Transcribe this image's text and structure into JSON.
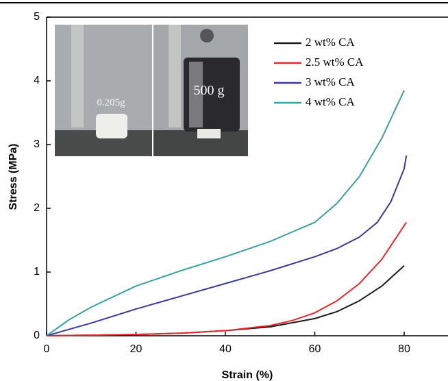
{
  "chart_data": {
    "type": "line",
    "x_label": "Strain (%)",
    "y_label": "Stress (MPa)",
    "xlim": [
      0,
      90
    ],
    "ylim": [
      0,
      5
    ],
    "xticks": [
      0,
      20,
      40,
      60,
      80
    ],
    "yticks": [
      0,
      1,
      2,
      3,
      4,
      5
    ],
    "legend": "upper right",
    "inset_labels": [
      "0.205g",
      "500 g"
    ],
    "series": [
      {
        "name": "2 wt% CA",
        "color": "#1a1a1a",
        "x": [
          0,
          10,
          20,
          30,
          40,
          50,
          60,
          65,
          70,
          75,
          80
        ],
        "values": [
          0,
          0.01,
          0.02,
          0.04,
          0.08,
          0.14,
          0.27,
          0.38,
          0.55,
          0.78,
          1.1
        ]
      },
      {
        "name": "2.5 wt% CA",
        "color": "#e8262c",
        "x": [
          0,
          10,
          20,
          30,
          40,
          50,
          55,
          60,
          65,
          70,
          75,
          80.5
        ],
        "values": [
          0,
          0.01,
          0.02,
          0.04,
          0.08,
          0.16,
          0.24,
          0.36,
          0.55,
          0.82,
          1.2,
          1.78
        ]
      },
      {
        "name": "3 wt% CA",
        "color": "#3a3a9a",
        "x": [
          0,
          5,
          10,
          20,
          30,
          40,
          50,
          60,
          65,
          70,
          74,
          77,
          80,
          80.5
        ],
        "values": [
          0,
          0.1,
          0.2,
          0.42,
          0.62,
          0.82,
          1.02,
          1.24,
          1.37,
          1.55,
          1.78,
          2.1,
          2.62,
          2.83
        ]
      },
      {
        "name": "4 wt% CA",
        "color": "#3aa0a0",
        "x": [
          0,
          5,
          10,
          20,
          30,
          40,
          50,
          60,
          65,
          70,
          75,
          80
        ],
        "values": [
          0,
          0.25,
          0.45,
          0.78,
          1.02,
          1.24,
          1.48,
          1.78,
          2.08,
          2.5,
          3.1,
          3.85
        ]
      }
    ]
  }
}
